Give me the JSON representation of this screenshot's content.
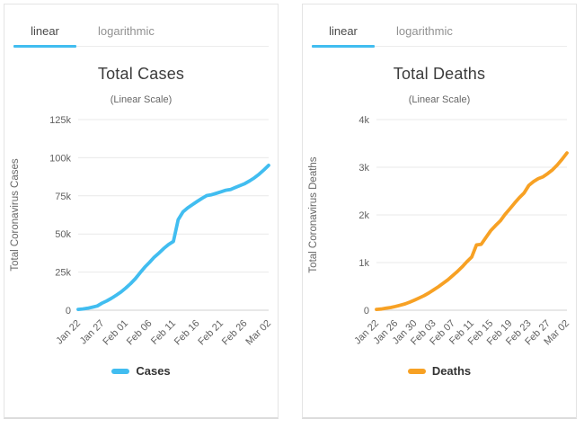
{
  "accent_color": "#41bdf0",
  "chart_data": [
    {
      "type": "line",
      "tabs": {
        "active": "linear",
        "inactive": "logarithmic"
      },
      "title": "Total Cases",
      "subtitle": "(Linear Scale)",
      "ylabel": "Total Coronavirus Cases",
      "legend_label": "Cases",
      "legend_position": "bottom",
      "color": "#41bdf0",
      "grid": true,
      "x_tick_every": 5,
      "y_axis": {
        "max": 125000,
        "ticks": [
          {
            "value": 0,
            "label": "0"
          },
          {
            "value": 25000,
            "label": "25k"
          },
          {
            "value": 50000,
            "label": "50k"
          },
          {
            "value": 75000,
            "label": "75k"
          },
          {
            "value": 100000,
            "label": "100k"
          },
          {
            "value": 125000,
            "label": "125k"
          }
        ]
      },
      "dates": [
        "Jan 22",
        "Jan 23",
        "Jan 24",
        "Jan 25",
        "Jan 26",
        "Jan 27",
        "Jan 28",
        "Jan 29",
        "Jan 30",
        "Jan 31",
        "Feb 01",
        "Feb 02",
        "Feb 03",
        "Feb 04",
        "Feb 05",
        "Feb 06",
        "Feb 07",
        "Feb 08",
        "Feb 09",
        "Feb 10",
        "Feb 11",
        "Feb 12",
        "Feb 13",
        "Feb 14",
        "Feb 15",
        "Feb 16",
        "Feb 17",
        "Feb 18",
        "Feb 19",
        "Feb 20",
        "Feb 21",
        "Feb 22",
        "Feb 23",
        "Feb 24",
        "Feb 25",
        "Feb 26",
        "Feb 27",
        "Feb 28",
        "Feb 29",
        "Mar 01",
        "Mar 02"
      ],
      "values": [
        555,
        845,
        1317,
        2015,
        2800,
        4581,
        6058,
        7813,
        9823,
        11950,
        14553,
        17391,
        20630,
        24545,
        28266,
        31439,
        34876,
        37552,
        40553,
        43099,
        45134,
        59287,
        64438,
        67100,
        69197,
        71329,
        73332,
        75184,
        75700,
        76677,
        77673,
        78651,
        79205,
        80500,
        81700,
        83000,
        84800,
        86800,
        89200,
        92000,
        95000
      ]
    },
    {
      "type": "line",
      "tabs": {
        "active": "linear",
        "inactive": "logarithmic"
      },
      "title": "Total Deaths",
      "subtitle": "(Linear Scale)",
      "ylabel": "Total Coronavirus Deaths",
      "legend_label": "Deaths",
      "legend_position": "bottom",
      "color": "#f7a124",
      "grid": true,
      "x_tick_every": 4,
      "y_axis": {
        "max": 4000,
        "ticks": [
          {
            "value": 0,
            "label": "0"
          },
          {
            "value": 1000,
            "label": "1k"
          },
          {
            "value": 2000,
            "label": "2k"
          },
          {
            "value": 3000,
            "label": "3k"
          },
          {
            "value": 4000,
            "label": "4k"
          }
        ]
      },
      "dates": [
        "Jan 22",
        "Jan 23",
        "Jan 24",
        "Jan 25",
        "Jan 26",
        "Jan 27",
        "Jan 28",
        "Jan 29",
        "Jan 30",
        "Jan 31",
        "Feb 01",
        "Feb 02",
        "Feb 03",
        "Feb 04",
        "Feb 05",
        "Feb 06",
        "Feb 07",
        "Feb 08",
        "Feb 09",
        "Feb 10",
        "Feb 11",
        "Feb 12",
        "Feb 13",
        "Feb 14",
        "Feb 15",
        "Feb 16",
        "Feb 17",
        "Feb 18",
        "Feb 19",
        "Feb 20",
        "Feb 21",
        "Feb 22",
        "Feb 23",
        "Feb 24",
        "Feb 25",
        "Feb 26",
        "Feb 27",
        "Feb 28",
        "Feb 29",
        "Mar 01",
        "Mar 02"
      ],
      "values": [
        17,
        25,
        41,
        56,
        80,
        106,
        132,
        170,
        213,
        259,
        305,
        362,
        426,
        492,
        565,
        638,
        724,
        813,
        910,
        1018,
        1115,
        1369,
        1383,
        1526,
        1669,
        1775,
        1873,
        2009,
        2126,
        2247,
        2360,
        2460,
        2618,
        2700,
        2763,
        2800,
        2870,
        2950,
        3050,
        3170,
        3300
      ]
    }
  ]
}
